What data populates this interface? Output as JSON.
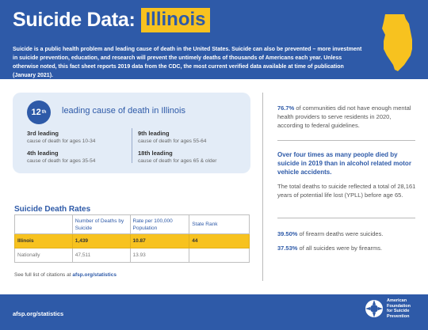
{
  "header": {
    "title": "Suicide Data:",
    "state": "Illinois",
    "intro": "Suicide is a public health problem and leading cause of death in the United States. Suicide can also be prevented – more investment in suicide prevention, education, and research will prevent the untimely deaths of thousands of Americans each year. Unless otherwise noted, this fact sheet reports 2019 data from the CDC, the most current verified data available at time of publication (January 2021)."
  },
  "stats": {
    "rank_number": "12",
    "rank_suffix": "th",
    "rank_text": "leading cause of death in Illinois",
    "items": [
      {
        "lead": "3rd leading",
        "desc": "cause of death for ages 10-34"
      },
      {
        "lead": "4th leading",
        "desc": "cause of death for ages 35-54"
      },
      {
        "lead": "9th leading",
        "desc": "cause of death for ages 55-64"
      },
      {
        "lead": "18th leading",
        "desc": "cause of death for ages 65 & older"
      }
    ]
  },
  "table": {
    "title": "Suicide Death Rates",
    "headers": [
      "",
      "Number of Deaths by Suicide",
      "Rate per 100,000 Population",
      "State Rank"
    ],
    "rows": [
      [
        "Illinois",
        "1,439",
        "10.87",
        "44"
      ],
      [
        "Nationally",
        "47,511",
        "13.93",
        ""
      ]
    ]
  },
  "citation": {
    "prefix": "See full list of citations at ",
    "link": "afsp.org/statistics"
  },
  "right": {
    "p1_bold": "76.7%",
    "p1_text": " of communities did not have enough mental health providers to serve residents in 2020, according to federal guidelines.",
    "p2": "Over four times as many people died by suicide in 2019 than in alcohol related motor vehicle accidents.",
    "p3": "The total deaths to suicide reflected a total of 28,161 years of potential life lost (YPLL) before age 65.",
    "p4_bold": "39.50%",
    "p4_text": " of firearm deaths were suicides.",
    "p5_bold": "37.53%",
    "p5_text": " of all suicides were by firearms."
  },
  "footer": {
    "url": "afsp.org/statistics",
    "org_line1": "American",
    "org_line2": "Foundation",
    "org_line3": "for Suicide",
    "org_line4": "Prevention"
  },
  "colors": {
    "brand_blue": "#2e5aa8",
    "accent_yellow": "#f7c21f",
    "card_bg": "#e3ecf7"
  }
}
